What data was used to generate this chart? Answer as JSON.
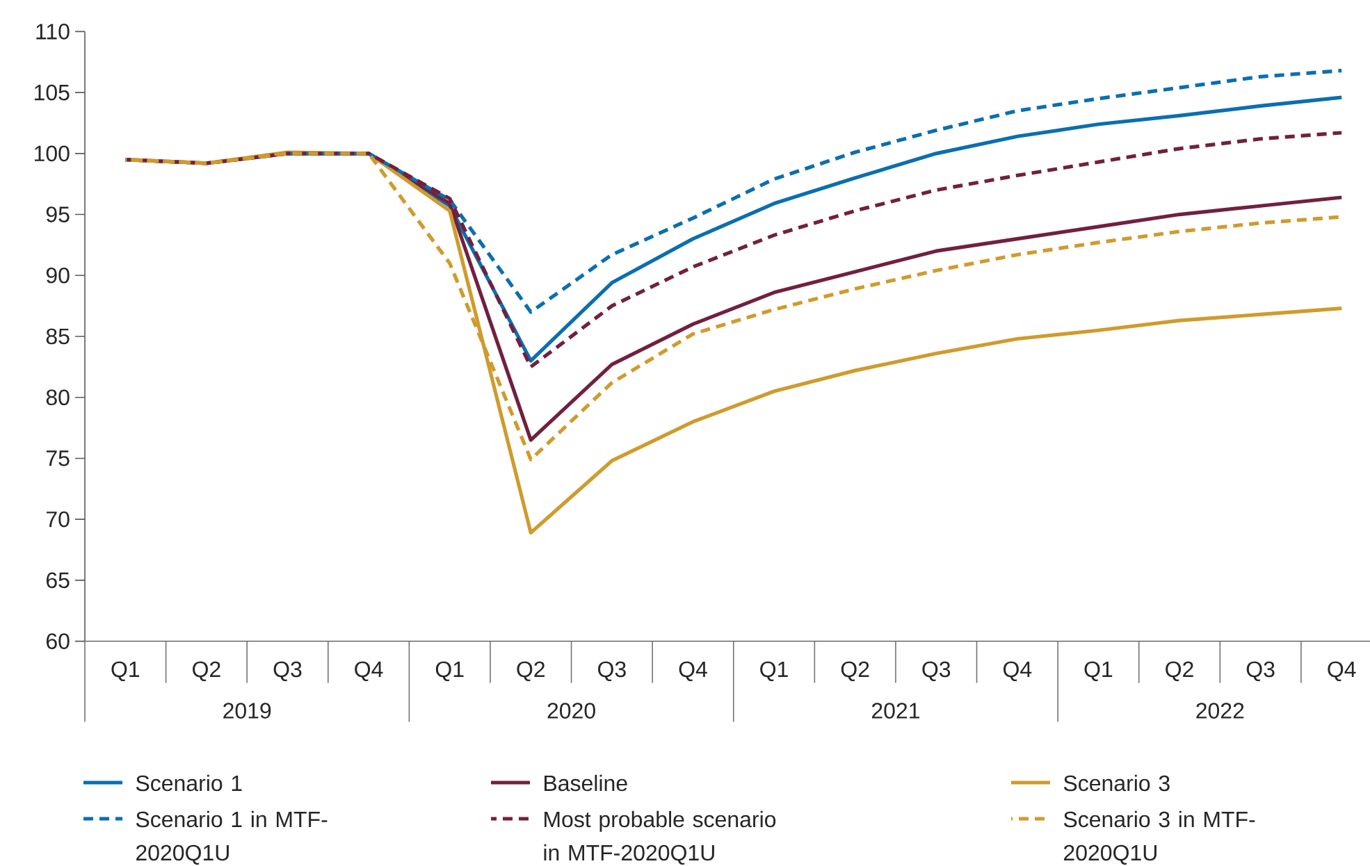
{
  "chart_data": {
    "type": "line",
    "categories": [
      "Q1",
      "Q2",
      "Q3",
      "Q4",
      "Q1",
      "Q2",
      "Q3",
      "Q4",
      "Q1",
      "Q2",
      "Q3",
      "Q4",
      "Q1",
      "Q2",
      "Q3",
      "Q4"
    ],
    "annotations": [
      "2019",
      "2020",
      "2021",
      "2022"
    ],
    "ylim": [
      60,
      110
    ],
    "yticks": [
      60,
      65,
      70,
      75,
      80,
      85,
      90,
      95,
      100,
      105,
      110
    ],
    "legend": "bottom",
    "series": [
      {
        "name": "Scenario 1",
        "color": "#0a6fb0",
        "line_style": "solid",
        "values": [
          null,
          null,
          100.0,
          100.0,
          95.7,
          83.0,
          89.4,
          93.0,
          95.9,
          98.0,
          100.0,
          101.4,
          102.4,
          103.1,
          103.9,
          104.6
        ]
      },
      {
        "name": "Baseline",
        "color": "#72203f",
        "line_style": "solid",
        "values": [
          99.5,
          99.2,
          100.0,
          100.0,
          95.9,
          76.5,
          82.7,
          86.0,
          88.6,
          90.3,
          92.0,
          93.0,
          94.0,
          95.0,
          95.7,
          96.4
        ]
      },
      {
        "name": "Scenario 3",
        "color": "#d09b2c",
        "line_style": "solid",
        "values": [
          99.5,
          99.2,
          100.1,
          100.0,
          95.3,
          68.9,
          74.8,
          78.0,
          80.5,
          82.2,
          83.6,
          84.8,
          85.5,
          86.3,
          86.8,
          87.3
        ]
      },
      {
        "name": "Scenario 1 in MTF-2020Q1U",
        "color": "#0a6fb0",
        "line_style": "dashed",
        "values": [
          null,
          null,
          100.0,
          100.0,
          96.2,
          87.0,
          91.7,
          94.7,
          97.9,
          100.1,
          101.9,
          103.5,
          104.5,
          105.4,
          106.3,
          106.8
        ]
      },
      {
        "name": "Most probable scenario in MTF-2020Q1U",
        "color": "#72203f",
        "line_style": "dashed",
        "values": [
          99.5,
          99.2,
          100.0,
          100.0,
          96.3,
          82.5,
          87.5,
          90.7,
          93.3,
          95.3,
          97.0,
          98.2,
          99.3,
          100.4,
          101.2,
          101.7
        ]
      },
      {
        "name": "Scenario 3 in MTF-2020Q1U",
        "color": "#d09b2c",
        "line_style": "dashed",
        "values": [
          99.5,
          99.2,
          100.0,
          100.0,
          91.0,
          74.9,
          81.2,
          85.2,
          87.2,
          88.9,
          90.4,
          91.7,
          92.7,
          93.6,
          94.3,
          94.8
        ]
      }
    ]
  }
}
